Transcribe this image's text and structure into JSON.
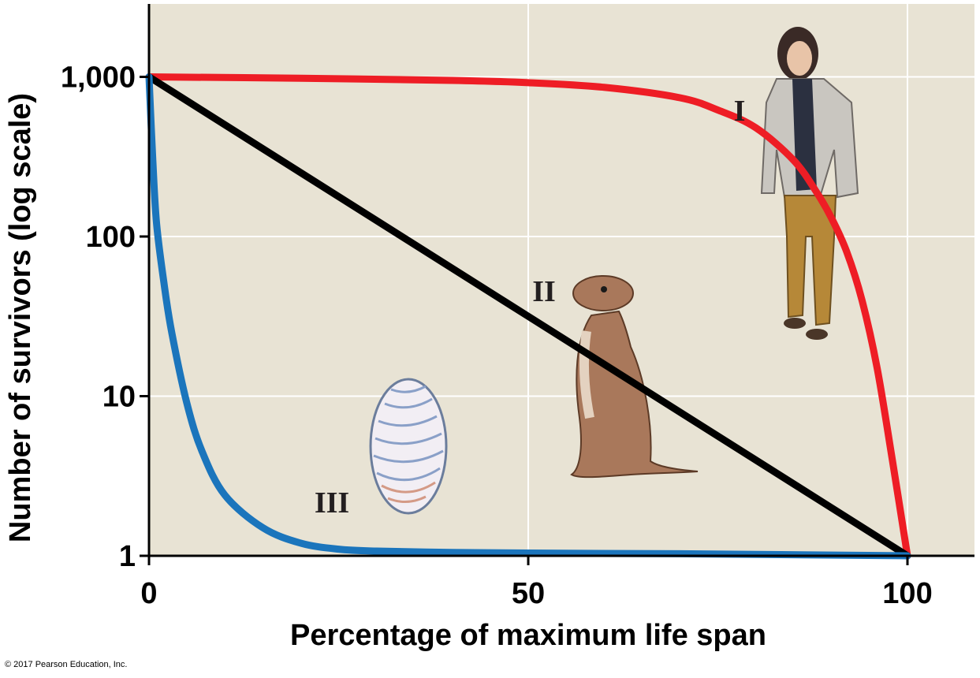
{
  "copyright": "© 2017 Pearson Education, Inc.",
  "chart_data": {
    "type": "line",
    "title": "",
    "xlabel": "Percentage of maximum life span",
    "ylabel": "Number of survivors (log scale)",
    "xlim": [
      0,
      109
    ],
    "ylim": [
      1,
      3000
    ],
    "yscale": "log",
    "xticks": [
      0,
      50,
      100
    ],
    "xtick_labels": [
      "0",
      "50",
      "100"
    ],
    "yticks": [
      1,
      10,
      100,
      1000
    ],
    "ytick_labels": [
      "1",
      "10",
      "100",
      "1,000"
    ],
    "grid": true,
    "background": "#e8e3d4",
    "series": [
      {
        "name": "I",
        "color": "#ee1d25",
        "x": [
          0,
          20,
          40,
          50,
          60,
          70,
          75,
          80,
          85,
          88,
          90,
          92,
          94,
          96,
          98,
          100
        ],
        "y": [
          1000,
          980,
          950,
          920,
          860,
          740,
          620,
          480,
          300,
          190,
          130,
          80,
          40,
          15,
          4,
          1
        ]
      },
      {
        "name": "II",
        "color": "#000000",
        "x": [
          0,
          100
        ],
        "y": [
          1000,
          1
        ]
      },
      {
        "name": "III",
        "color": "#1b75bc",
        "x": [
          0,
          0.5,
          1,
          2,
          3,
          5,
          7,
          10,
          15,
          20,
          25,
          30,
          40,
          50,
          70,
          100
        ],
        "y": [
          1000,
          300,
          120,
          50,
          25,
          9,
          4.5,
          2.4,
          1.5,
          1.2,
          1.1,
          1.07,
          1.05,
          1.04,
          1.03,
          1
        ]
      }
    ]
  }
}
